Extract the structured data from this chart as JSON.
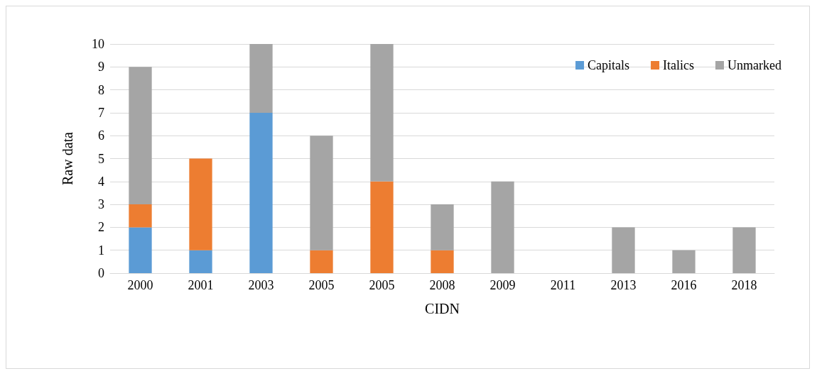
{
  "chart_data": {
    "type": "bar",
    "stacked": true,
    "xlabel": "CIDN",
    "ylabel": "Raw data",
    "categories": [
      "2000",
      "2001",
      "2003",
      "2005",
      "2005",
      "2008",
      "2009",
      "2011",
      "2013",
      "2016",
      "2018"
    ],
    "series": [
      {
        "name": "Capitals",
        "color": "#5b9bd5",
        "values": [
          2,
          1,
          7,
          0,
          0,
          0,
          0,
          0,
          0,
          0,
          0
        ]
      },
      {
        "name": "Italics",
        "color": "#ed7d31",
        "values": [
          1,
          4,
          0,
          1,
          4,
          1,
          0,
          0,
          0,
          0,
          0
        ]
      },
      {
        "name": "Unmarked",
        "color": "#a5a5a5",
        "values": [
          6,
          0,
          3,
          5,
          6,
          2,
          4,
          0,
          2,
          1,
          2
        ]
      }
    ],
    "ylim": [
      0,
      10
    ],
    "yticks": [
      0,
      1,
      2,
      3,
      4,
      5,
      6,
      7,
      8,
      9,
      10
    ],
    "grid": "y",
    "legend": "top right"
  }
}
